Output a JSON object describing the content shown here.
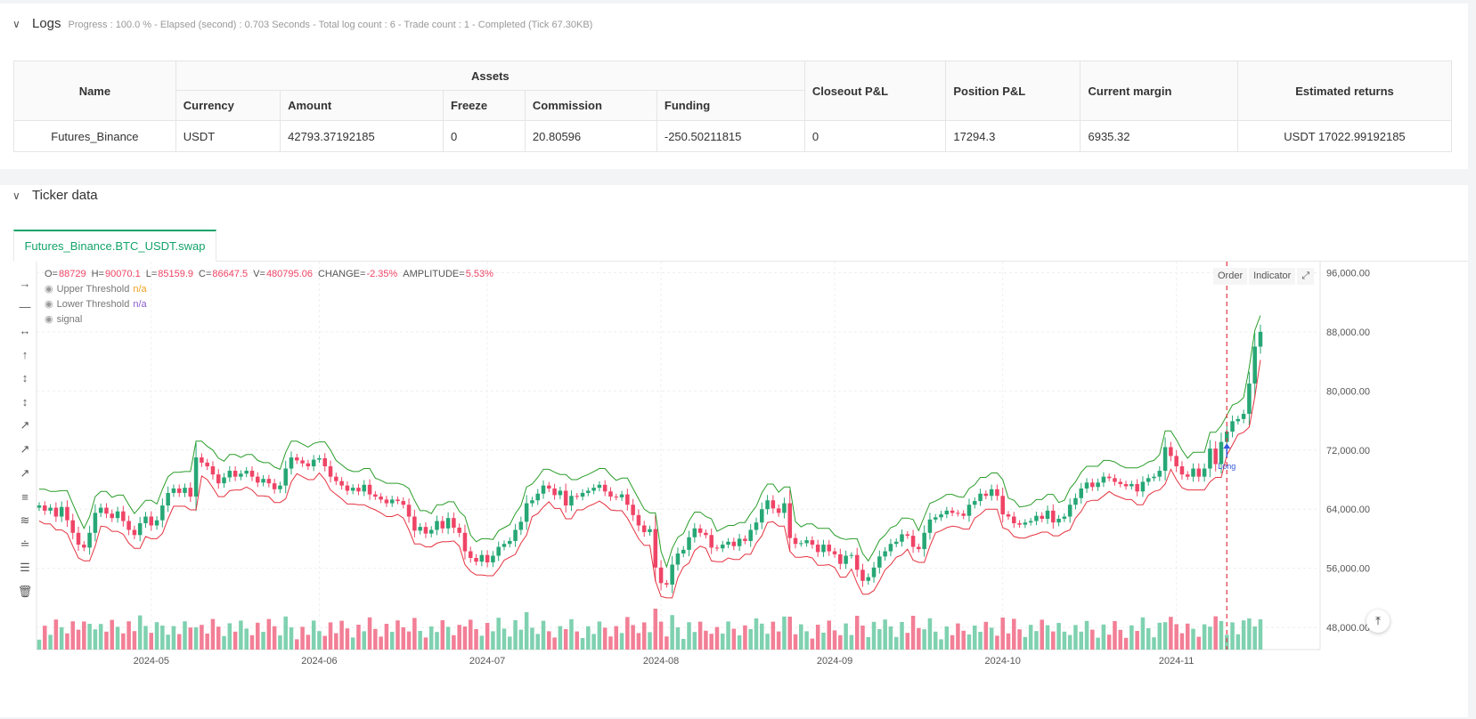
{
  "logs": {
    "title": "Logs",
    "subtitle": "Progress : 100.0 % - Elapsed (second) : 0.703  Seconds - Total log count : 6 - Trade count : 1 - Completed (Tick 67.30KB)",
    "table": {
      "col_name": "Name",
      "col_assets": "Assets",
      "sub_currency": "Currency",
      "sub_amount": "Amount",
      "sub_freeze": "Freeze",
      "sub_commission": "Commission",
      "sub_funding": "Funding",
      "col_closeout": "Closeout P&L",
      "col_position": "Position P&L",
      "col_margin": "Current margin",
      "col_returns": "Estimated returns",
      "row": {
        "name": "Futures_Binance",
        "currency": "USDT",
        "amount": "42793.37192185",
        "freeze": "0",
        "commission": "20.80596",
        "funding": "-250.50211815",
        "closeout": "0",
        "position": "17294.3",
        "margin": "6935.32",
        "returns": "USDT 17022.99192185"
      }
    }
  },
  "ticker": {
    "title": "Ticker data",
    "tab_label": "Futures_Binance.BTC_USDT.swap",
    "legend": {
      "ohlc": {
        "o_label": "O=",
        "o": "88729",
        "h_label": "H=",
        "h": "90070.1",
        "l_label": "L=",
        "l": "85159.9",
        "c_label": "C=",
        "c": "86647.5",
        "v_label": "V=",
        "v": "480795.06",
        "change_label": "CHANGE=",
        "change": "-2.35%",
        "amp_label": "AMPLITUDE=",
        "amp": "5.53%"
      },
      "upper_label": "Upper Threshold",
      "upper_value": "n/a",
      "lower_label": "Lower Threshold",
      "lower_value": "n/a",
      "signal_label": "signal"
    },
    "buttons": {
      "order": "Order",
      "indicator": "Indicator",
      "fullscreen": "⤢"
    },
    "marker_label": "Long",
    "scroll_top": "⤒"
  },
  "colors": {
    "up": "#26a775",
    "down": "#ef4466",
    "vol_up": "#7fd1b0",
    "vol_down": "#f27f96",
    "upper_line": "#2a9d2a",
    "lower_line": "#e53340",
    "accent": "#13a36a",
    "marker": "#3355dd"
  },
  "chart_data": {
    "type": "candlestick",
    "x_ticks": [
      "2024-05",
      "2024-06",
      "2024-07",
      "2024-08",
      "2024-09",
      "2024-10",
      "2024-11"
    ],
    "y_ticks": [
      "96,000.00",
      "88,000.00",
      "80,000.00",
      "72,000.00",
      "64,000.00",
      "56,000.00",
      "48,000.00"
    ],
    "ylim": [
      45000,
      97500
    ],
    "series_close": [
      64500,
      63800,
      64200,
      63000,
      64300,
      62500,
      60800,
      59200,
      58800,
      60800,
      63500,
      64200,
      63400,
      62800,
      63700,
      62400,
      61200,
      60500,
      62100,
      63000,
      61800,
      62500,
      64500,
      66200,
      66800,
      66200,
      66900,
      65700,
      71000,
      70300,
      69800,
      68700,
      67500,
      68300,
      69200,
      68400,
      68800,
      69200,
      68400,
      67600,
      68100,
      67500,
      66700,
      67200,
      69500,
      71000,
      70600,
      70200,
      69800,
      70700,
      70900,
      69800,
      68400,
      67800,
      67200,
      66500,
      66900,
      66400,
      67300,
      66000,
      65700,
      65300,
      64800,
      65300,
      65100,
      64600,
      63000,
      61100,
      61600,
      60700,
      61200,
      62400,
      61400,
      62800,
      61500,
      60800,
      58300,
      57400,
      56900,
      57800,
      56800,
      57700,
      58900,
      59300,
      59700,
      61200,
      62300,
      64800,
      65200,
      66100,
      67200,
      66800,
      65900,
      66500,
      64500,
      65800,
      65700,
      66200,
      66500,
      66900,
      67300,
      66400,
      65700,
      65600,
      66000,
      64600,
      63200,
      61800,
      60900,
      61300,
      56100,
      54000,
      53800,
      56500,
      58000,
      58500,
      60200,
      61400,
      60800,
      60500,
      58800,
      58700,
      59200,
      59600,
      59000,
      60000,
      59700,
      61200,
      62200,
      64000,
      65200,
      64100,
      63500,
      64800,
      60100,
      59300,
      59400,
      59800,
      59200,
      58200,
      59200,
      58300,
      57900,
      56600,
      57700,
      57800,
      55800,
      54300,
      54800,
      56100,
      57600,
      58300,
      59300,
      59600,
      60600,
      60400,
      58900,
      58600,
      60800,
      62600,
      62900,
      63300,
      63800,
      63500,
      63400,
      63100,
      64600,
      65100,
      66100,
      65800,
      66700,
      65800,
      63300,
      63000,
      62100,
      61900,
      62200,
      62400,
      63100,
      62700,
      63800,
      62200,
      62700,
      63000,
      64600,
      65500,
      66800,
      67600,
      67000,
      67600,
      68400,
      68200,
      67700,
      67400,
      67100,
      67400,
      66400,
      67700,
      68200,
      68400,
      69200,
      72400,
      71200,
      69800,
      68700,
      68400,
      69500,
      68400,
      69500,
      72200,
      70100,
      73100,
      74500,
      75900,
      76200,
      76900,
      81000,
      86000,
      88000
    ],
    "signal": {
      "label": "Long",
      "index": 212
    }
  }
}
